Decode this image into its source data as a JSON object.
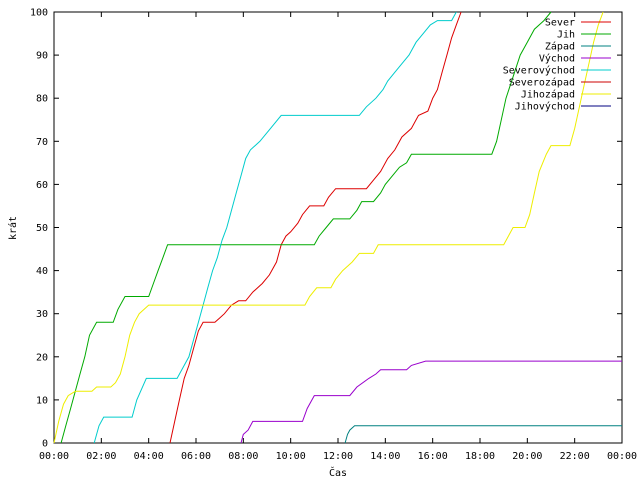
{
  "chart_data": {
    "type": "line",
    "xlabel": "Čas",
    "ylabel": "krát",
    "xlim": [
      0,
      24
    ],
    "ylim": [
      0,
      100
    ],
    "grid": false,
    "legend_position": "top-right",
    "x_ticks": [
      {
        "value": 0,
        "label": "00:00"
      },
      {
        "value": 2,
        "label": "02:00"
      },
      {
        "value": 4,
        "label": "04:00"
      },
      {
        "value": 6,
        "label": "06:00"
      },
      {
        "value": 8,
        "label": "08:00"
      },
      {
        "value": 10,
        "label": "10:00"
      },
      {
        "value": 12,
        "label": "12:00"
      },
      {
        "value": 14,
        "label": "14:00"
      },
      {
        "value": 16,
        "label": "16:00"
      },
      {
        "value": 18,
        "label": "18:00"
      },
      {
        "value": 20,
        "label": "20:00"
      },
      {
        "value": 22,
        "label": "22:00"
      },
      {
        "value": 24,
        "label": "00:00"
      }
    ],
    "y_ticks": [
      0,
      10,
      20,
      30,
      40,
      50,
      60,
      70,
      80,
      90,
      100
    ],
    "series": [
      {
        "name": "Sever",
        "color": "#dd0000",
        "points": [
          [
            4.9,
            0
          ],
          [
            5.1,
            5
          ],
          [
            5.3,
            10
          ],
          [
            5.5,
            15
          ],
          [
            5.7,
            18
          ],
          [
            5.9,
            22
          ],
          [
            6.1,
            26
          ],
          [
            6.3,
            28
          ],
          [
            6.8,
            28
          ],
          [
            7.0,
            29
          ],
          [
            7.2,
            30
          ],
          [
            7.5,
            32
          ],
          [
            7.8,
            33
          ],
          [
            8.1,
            33
          ],
          [
            8.4,
            35
          ],
          [
            8.8,
            37
          ],
          [
            9.1,
            39
          ],
          [
            9.4,
            42
          ],
          [
            9.6,
            46
          ],
          [
            9.8,
            48
          ],
          [
            10.0,
            49
          ],
          [
            10.3,
            51
          ],
          [
            10.5,
            53
          ],
          [
            10.8,
            55
          ],
          [
            11.4,
            55
          ],
          [
            11.6,
            57
          ],
          [
            11.9,
            59
          ],
          [
            13.2,
            59
          ],
          [
            13.5,
            61
          ],
          [
            13.8,
            63
          ],
          [
            14.1,
            66
          ],
          [
            14.4,
            68
          ],
          [
            14.7,
            71
          ],
          [
            15.1,
            73
          ],
          [
            15.4,
            76
          ],
          [
            15.8,
            77
          ],
          [
            16.0,
            80
          ],
          [
            16.2,
            82
          ],
          [
            16.4,
            86
          ],
          [
            16.6,
            90
          ],
          [
            16.8,
            94
          ],
          [
            17.0,
            97
          ],
          [
            17.2,
            100
          ]
        ]
      },
      {
        "name": "Jih",
        "color": "#00aa00",
        "points": [
          [
            0.3,
            0
          ],
          [
            0.5,
            4
          ],
          [
            0.7,
            8
          ],
          [
            0.9,
            12
          ],
          [
            1.1,
            16
          ],
          [
            1.3,
            20
          ],
          [
            1.5,
            25
          ],
          [
            1.8,
            28
          ],
          [
            2.5,
            28
          ],
          [
            2.7,
            31
          ],
          [
            3.0,
            34
          ],
          [
            4.0,
            34
          ],
          [
            4.2,
            37
          ],
          [
            4.4,
            40
          ],
          [
            4.6,
            43
          ],
          [
            4.8,
            46
          ],
          [
            11.0,
            46
          ],
          [
            11.2,
            48
          ],
          [
            11.5,
            50
          ],
          [
            11.8,
            52
          ],
          [
            12.5,
            52
          ],
          [
            12.8,
            54
          ],
          [
            13.0,
            56
          ],
          [
            13.5,
            56
          ],
          [
            13.8,
            58
          ],
          [
            14.0,
            60
          ],
          [
            14.3,
            62
          ],
          [
            14.6,
            64
          ],
          [
            14.9,
            65
          ],
          [
            15.1,
            67
          ],
          [
            18.5,
            67
          ],
          [
            18.7,
            70
          ],
          [
            18.9,
            75
          ],
          [
            19.1,
            80
          ],
          [
            19.4,
            85
          ],
          [
            19.7,
            90
          ],
          [
            20.0,
            93
          ],
          [
            20.3,
            96
          ],
          [
            20.7,
            98
          ],
          [
            21.0,
            100
          ]
        ]
      },
      {
        "name": "Západ",
        "color": "#008080",
        "points": [
          [
            12.3,
            0
          ],
          [
            12.4,
            2
          ],
          [
            12.5,
            3
          ],
          [
            12.7,
            4
          ],
          [
            24,
            4
          ]
        ]
      },
      {
        "name": "Východ",
        "color": "#9900cc",
        "points": [
          [
            7.9,
            0
          ],
          [
            8.0,
            2
          ],
          [
            8.2,
            3
          ],
          [
            8.4,
            5
          ],
          [
            10.5,
            5
          ],
          [
            10.7,
            8
          ],
          [
            11.0,
            11
          ],
          [
            12.5,
            11
          ],
          [
            12.8,
            13
          ],
          [
            13.3,
            15
          ],
          [
            13.6,
            16
          ],
          [
            13.8,
            17
          ],
          [
            14.9,
            17
          ],
          [
            15.1,
            18
          ],
          [
            15.7,
            19
          ],
          [
            24,
            19
          ]
        ]
      },
      {
        "name": "Severovýchod",
        "color": "#00cccc",
        "points": [
          [
            1.7,
            0
          ],
          [
            1.9,
            4
          ],
          [
            2.1,
            6
          ],
          [
            3.3,
            6
          ],
          [
            3.5,
            10
          ],
          [
            3.9,
            15
          ],
          [
            5.2,
            15
          ],
          [
            5.4,
            17
          ],
          [
            5.7,
            20
          ],
          [
            5.9,
            24
          ],
          [
            6.1,
            28
          ],
          [
            6.3,
            32
          ],
          [
            6.5,
            36
          ],
          [
            6.7,
            40
          ],
          [
            6.9,
            43
          ],
          [
            7.1,
            47
          ],
          [
            7.3,
            50
          ],
          [
            7.5,
            54
          ],
          [
            7.7,
            58
          ],
          [
            7.9,
            62
          ],
          [
            8.1,
            66
          ],
          [
            8.3,
            68
          ],
          [
            8.7,
            70
          ],
          [
            9.0,
            72
          ],
          [
            9.3,
            74
          ],
          [
            9.6,
            76
          ],
          [
            12.9,
            76
          ],
          [
            13.2,
            78
          ],
          [
            13.6,
            80
          ],
          [
            13.9,
            82
          ],
          [
            14.1,
            84
          ],
          [
            14.4,
            86
          ],
          [
            14.7,
            88
          ],
          [
            15.0,
            90
          ],
          [
            15.3,
            93
          ],
          [
            15.6,
            95
          ],
          [
            15.9,
            97
          ],
          [
            16.2,
            98
          ],
          [
            16.8,
            98
          ],
          [
            17.0,
            100
          ]
        ]
      },
      {
        "name": "Severozápad",
        "color": "#cc0000",
        "points": [
          [
            17.2,
            100
          ]
        ]
      },
      {
        "name": "Jihozápad",
        "color": "#eeee00",
        "points": [
          [
            0.0,
            0
          ],
          [
            0.2,
            5
          ],
          [
            0.4,
            9
          ],
          [
            0.6,
            11
          ],
          [
            0.9,
            12
          ],
          [
            1.6,
            12
          ],
          [
            1.8,
            13
          ],
          [
            2.4,
            13
          ],
          [
            2.6,
            14
          ],
          [
            2.8,
            16
          ],
          [
            3.0,
            20
          ],
          [
            3.2,
            25
          ],
          [
            3.4,
            28
          ],
          [
            3.6,
            30
          ],
          [
            4.0,
            32
          ],
          [
            10.6,
            32
          ],
          [
            10.8,
            34
          ],
          [
            11.1,
            36
          ],
          [
            11.7,
            36
          ],
          [
            11.9,
            38
          ],
          [
            12.2,
            40
          ],
          [
            12.6,
            42
          ],
          [
            12.9,
            44
          ],
          [
            13.5,
            44
          ],
          [
            13.7,
            46
          ],
          [
            19.0,
            46
          ],
          [
            19.2,
            48
          ],
          [
            19.4,
            50
          ],
          [
            19.9,
            50
          ],
          [
            20.1,
            53
          ],
          [
            20.3,
            58
          ],
          [
            20.5,
            63
          ],
          [
            20.8,
            67
          ],
          [
            21.0,
            69
          ],
          [
            21.8,
            69
          ],
          [
            22.0,
            73
          ],
          [
            22.2,
            78
          ],
          [
            22.4,
            83
          ],
          [
            22.6,
            88
          ],
          [
            22.8,
            93
          ],
          [
            23.0,
            97
          ],
          [
            23.2,
            100
          ]
        ]
      },
      {
        "name": "Jihovýchod",
        "color": "#000080",
        "points": []
      }
    ]
  }
}
